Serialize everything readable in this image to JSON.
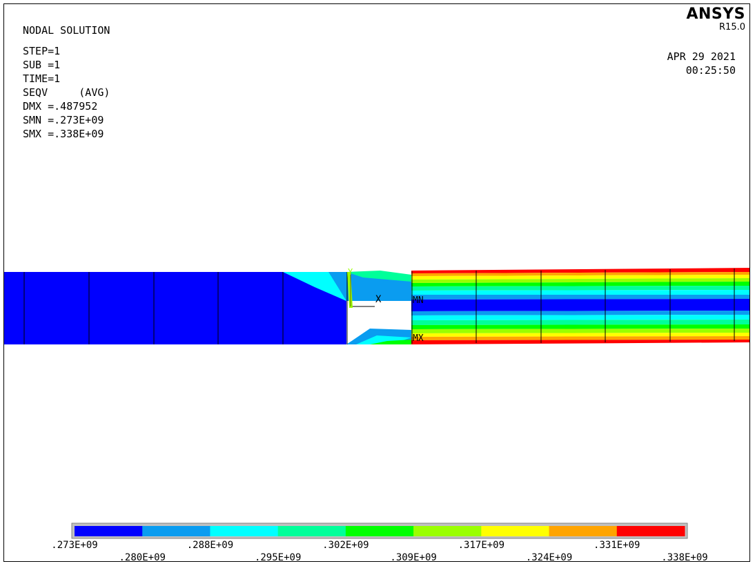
{
  "info": {
    "title": "NODAL SOLUTION",
    "lines": [
      "STEP=1",
      "SUB =1",
      "TIME=1",
      "SEQV     (AVG)",
      "DMX =.487952",
      "SMN =.273E+09",
      "SMX =.338E+09"
    ]
  },
  "brand": {
    "logo": "ANSYS",
    "version": "R15.0"
  },
  "stamp": {
    "date": "APR 29 2021",
    "time": "00:25:50"
  },
  "plot_labels": {
    "mn": "MN",
    "mx": "MX",
    "axis_x": "X",
    "axis_y": "Y"
  },
  "legend": {
    "colors": [
      "#0000ff",
      "#0a9cf0",
      "#00ffff",
      "#00ff9a",
      "#00ff00",
      "#9aff00",
      "#ffff00",
      "#ffa400",
      "#ff0000"
    ],
    "labels": [
      ".273E+09",
      ".280E+09",
      ".288E+09",
      ".295E+09",
      ".302E+09",
      ".309E+09",
      ".317E+09",
      ".324E+09",
      ".331E+09",
      ".338E+09"
    ]
  }
}
